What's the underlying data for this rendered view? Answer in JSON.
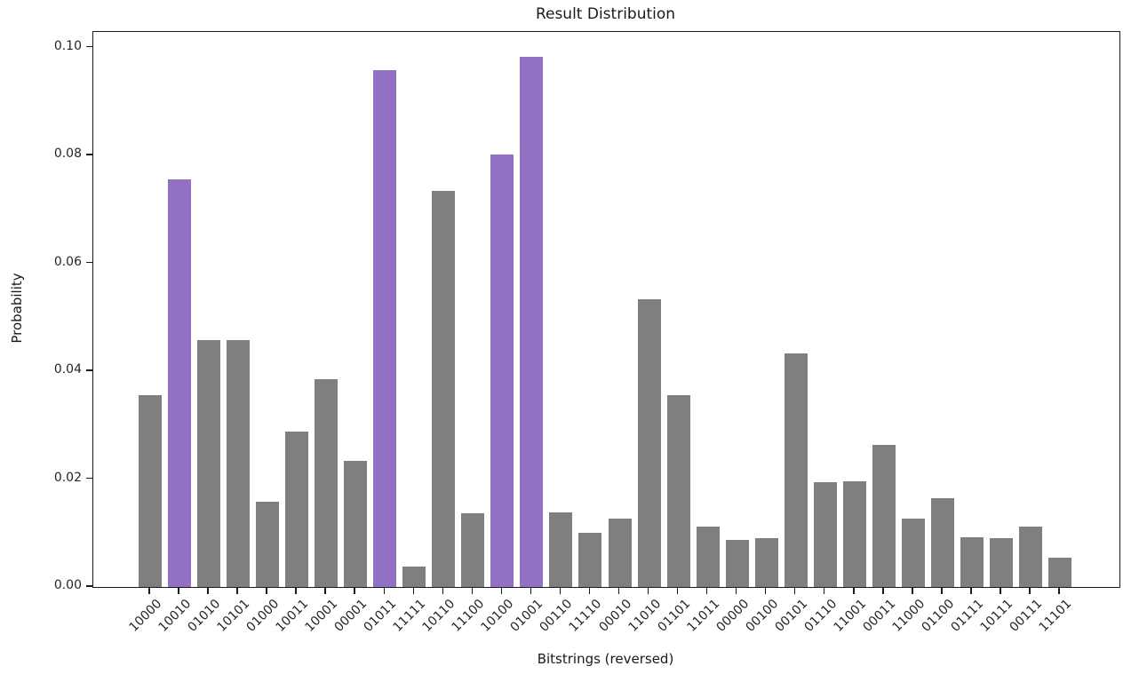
{
  "chart_data": {
    "type": "bar",
    "title": "Result Distribution",
    "xlabel": "Bitstrings (reversed)",
    "ylabel": "Probability",
    "categories": [
      "10000",
      "10010",
      "01010",
      "10101",
      "01000",
      "10011",
      "10001",
      "00001",
      "01011",
      "11111",
      "10110",
      "11100",
      "10100",
      "01001",
      "00110",
      "11110",
      "00010",
      "11010",
      "01101",
      "11011",
      "00000",
      "00100",
      "00101",
      "01110",
      "11001",
      "00011",
      "11000",
      "01100",
      "01111",
      "10111",
      "00111",
      "11101"
    ],
    "values": [
      0.0356,
      0.0756,
      0.0458,
      0.0458,
      0.0158,
      0.0288,
      0.0386,
      0.0234,
      0.0958,
      0.0038,
      0.0734,
      0.0137,
      0.0802,
      0.0982,
      0.0139,
      0.0101,
      0.0126,
      0.0534,
      0.0355,
      0.0112,
      0.0087,
      0.0091,
      0.0433,
      0.0194,
      0.0196,
      0.0263,
      0.0127,
      0.0164,
      0.0093,
      0.009,
      0.0112,
      0.0054
    ],
    "highlighted_categories": [
      "10010",
      "01011",
      "10100",
      "01001"
    ],
    "bar_color_default": "#7f7f7f",
    "bar_color_highlight": "#9271c4",
    "yticks": [
      "0.00",
      "0.02",
      "0.04",
      "0.06",
      "0.08",
      "0.10"
    ],
    "ytick_values": [
      0.0,
      0.02,
      0.04,
      0.06,
      0.08,
      0.1
    ],
    "ylim": [
      0,
      0.1029
    ],
    "grid": false,
    "legend": "none",
    "x_tick_rotation": 45
  }
}
